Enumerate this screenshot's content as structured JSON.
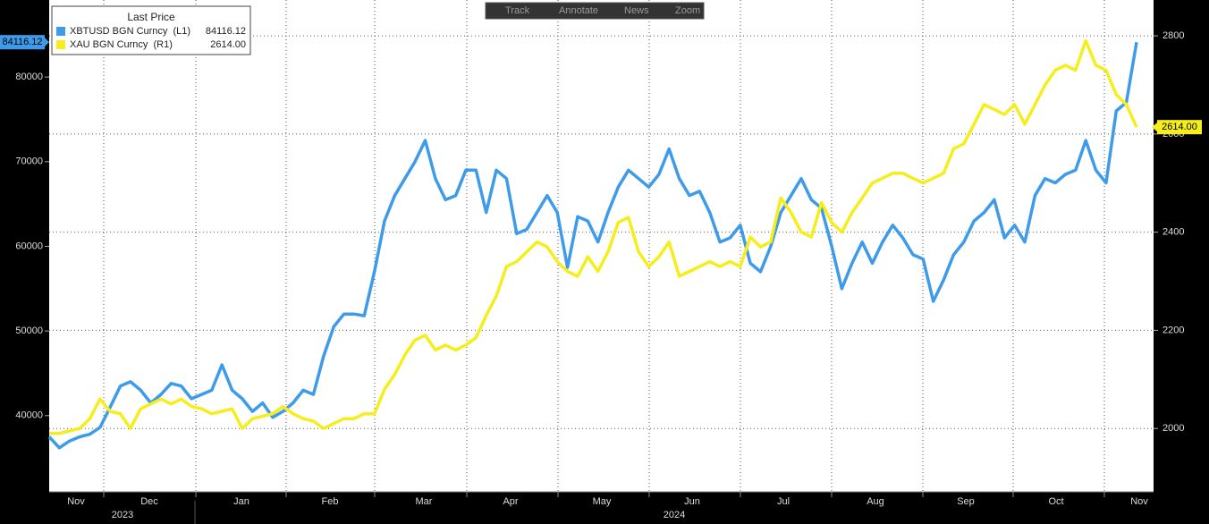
{
  "chart_data": {
    "type": "line",
    "legend_title": "Last Price",
    "toolbar": [
      "Track",
      "Annotate",
      "News",
      "Zoom"
    ],
    "months": [
      "Nov",
      "Dec",
      "Jan",
      "Feb",
      "Mar",
      "Apr",
      "May",
      "Jun",
      "Jul",
      "Aug",
      "Sep",
      "Oct",
      "Nov"
    ],
    "years": [
      "2023",
      "2024"
    ],
    "ylim": [
      31000,
      89100
    ],
    "yticks": [
      40000,
      50000,
      60000,
      70000,
      80000
    ],
    "y2lim": [
      1871,
      2873
    ],
    "y2ticks": [
      2000,
      2200,
      2400,
      2600,
      2800
    ],
    "grid": true,
    "series": [
      {
        "name": "XBTUSD BGN Curncy  (L1)",
        "color": "#3d9be9",
        "last_label": "84116.12",
        "values": [
          37500,
          36200,
          37000,
          37500,
          37800,
          38600,
          41000,
          43500,
          44000,
          43000,
          41500,
          42500,
          43800,
          43500,
          42000,
          42500,
          43000,
          46000,
          43000,
          42000,
          40500,
          41500,
          39800,
          40500,
          41500,
          43000,
          42500,
          47000,
          50500,
          52000,
          52000,
          51800,
          57000,
          63000,
          66000,
          68000,
          70000,
          72500,
          68000,
          65500,
          66000,
          69000,
          69000,
          64000,
          69000,
          68000,
          61500,
          62000,
          64000,
          66000,
          64000,
          57500,
          63500,
          63000,
          60500,
          64000,
          67000,
          69000,
          68000,
          67000,
          68500,
          71500,
          68000,
          66000,
          66500,
          64000,
          60500,
          61000,
          62500,
          58000,
          57000,
          60000,
          64000,
          66000,
          68000,
          65500,
          64500,
          60000,
          55000,
          58000,
          60500,
          58000,
          60500,
          62500,
          61000,
          59000,
          58500,
          53500,
          56000,
          59000,
          60500,
          63000,
          64000,
          65500,
          61000,
          62500,
          60500,
          66000,
          68000,
          67500,
          68500,
          69000,
          72500,
          69000,
          67500,
          76000,
          77000,
          84116.12
        ]
      },
      {
        "name": "XAU BGN Curncy  (R1)",
        "color": "#f5ee1c",
        "axis": "y2",
        "last_label": "2614.00",
        "values": [
          1990,
          1990,
          1995,
          2000,
          2020,
          2060,
          2035,
          2030,
          2000,
          2040,
          2050,
          2060,
          2050,
          2060,
          2045,
          2040,
          2030,
          2035,
          2040,
          2000,
          2020,
          2025,
          2030,
          2045,
          2030,
          2020,
          2015,
          2000,
          2010,
          2020,
          2020,
          2030,
          2030,
          2080,
          2110,
          2150,
          2180,
          2190,
          2160,
          2170,
          2160,
          2170,
          2185,
          2230,
          2270,
          2330,
          2340,
          2360,
          2380,
          2370,
          2340,
          2320,
          2310,
          2350,
          2320,
          2360,
          2420,
          2430,
          2360,
          2330,
          2350,
          2380,
          2310,
          2320,
          2330,
          2340,
          2330,
          2340,
          2330,
          2390,
          2370,
          2380,
          2470,
          2440,
          2400,
          2390,
          2460,
          2420,
          2400,
          2440,
          2470,
          2500,
          2510,
          2520,
          2520,
          2510,
          2500,
          2510,
          2520,
          2570,
          2580,
          2620,
          2660,
          2650,
          2640,
          2660,
          2620,
          2660,
          2700,
          2730,
          2740,
          2730,
          2790,
          2740,
          2730,
          2680,
          2660,
          2614
        ]
      }
    ]
  }
}
